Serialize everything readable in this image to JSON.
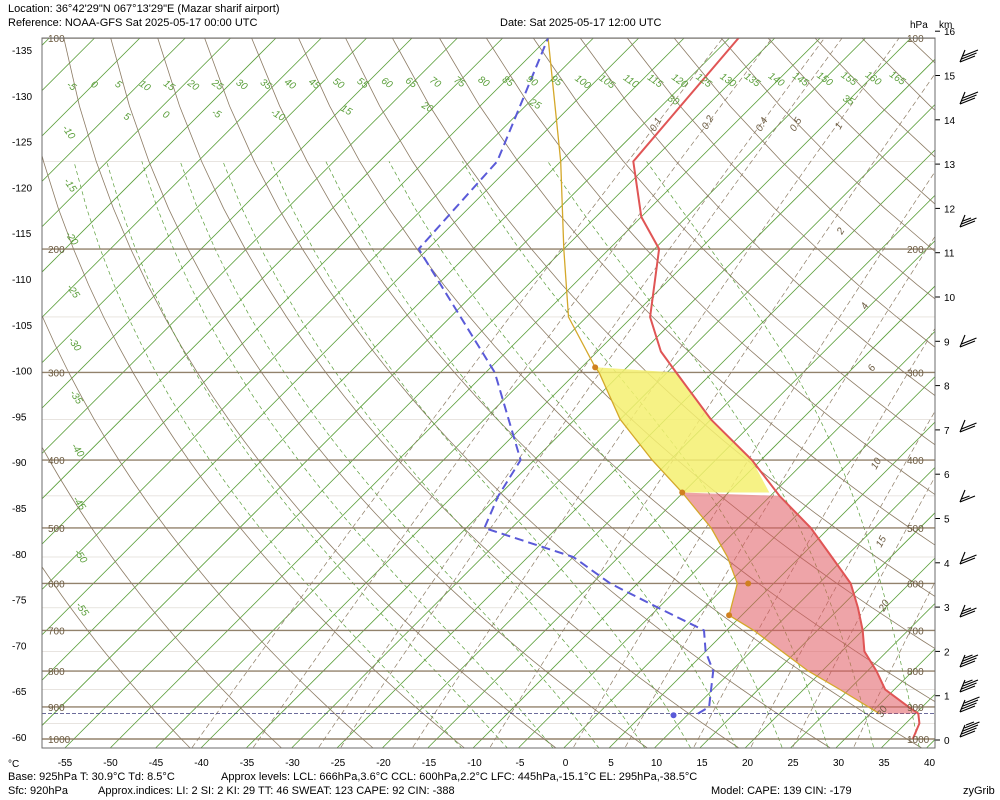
{
  "header": {
    "location": "Location:  36°42'29\"N  067°13'29\"E (Mazar sharif airport)",
    "reference": "Reference: NOAA-GFS Sat 2025-05-17 00:00 UTC",
    "date": "Date: Sat 2025-05-17 12:00 UTC",
    "unit_hpa": "hPa",
    "unit_km": "km",
    "unit_c": "°C"
  },
  "footer": {
    "base": "Base: 925hPa  T: 30.9°C  Td: 8.5°C",
    "levels": "Approx levels:  LCL: 666hPa,3.6°C   CCL: 600hPa,2.2°C   LFC: 445hPa,-15.1°C   EL: 295hPa,-38.5°C",
    "sfc": "Sfc: 920hPa",
    "indices": "Approx.indices:  LI: 2   SI: 2   KI: 29   TT: 46   SWEAT: 123    CAPE: 92  CIN: -388",
    "model": "Model: CAPE: 139 CIN: -179",
    "brand": "zyGrib"
  },
  "chart_data": {
    "type": "line",
    "diagram": "skew-T log-p",
    "x_ticks": [
      "-55",
      "-50",
      "-45",
      "-40",
      "-35",
      "-30",
      "-25",
      "-20",
      "-15",
      "-10",
      "-5",
      "0",
      "5",
      "10",
      "15",
      "20",
      "25",
      "30",
      "35",
      "40"
    ],
    "left_ticks": [
      "-135",
      "-130",
      "-125",
      "-120",
      "-115",
      "-110",
      "-105",
      "-100",
      "-95",
      "-90",
      "-85",
      "-80",
      "-75",
      "-70",
      "-65",
      "-60"
    ],
    "pressure_levels": [
      "100",
      "200",
      "300",
      "400",
      "500",
      "600",
      "700",
      "800",
      "900",
      "1000"
    ],
    "km_ticks": [
      "0",
      "1",
      "2",
      "3",
      "4",
      "5",
      "6",
      "7",
      "8",
      "9",
      "10",
      "11",
      "12",
      "13",
      "14",
      "15",
      "16"
    ],
    "mixing_ratio_labels": [
      "0.1",
      "0.2",
      "0.4",
      "0.5",
      "1",
      "2",
      "4",
      "6",
      "10",
      "15",
      "20",
      "30"
    ],
    "theta_top_labels": [
      "-5",
      "0",
      "5",
      "10",
      "15",
      "20",
      "25",
      "30",
      "35",
      "40",
      "45",
      "50",
      "55",
      "60",
      "65",
      "70",
      "75",
      "80",
      "85",
      "90",
      "95",
      "100",
      "105",
      "110",
      "115",
      "120",
      "125",
      "130",
      "135",
      "140",
      "145",
      "150",
      "155",
      "160",
      "165"
    ],
    "theta_left_labels": [
      "-10",
      "-15",
      "-20",
      "-25",
      "-30",
      "-35",
      "-40",
      "-45",
      "-50",
      "-55"
    ],
    "theta_e_labels": [
      "5",
      "0",
      "-5",
      "-10",
      "15",
      "20",
      "25",
      "30",
      "35"
    ],
    "temperature_profile": [
      [
        1000,
        37.5
      ],
      [
        950,
        36.5
      ],
      [
        920,
        35.3
      ],
      [
        900,
        33.5
      ],
      [
        850,
        29.0
      ],
      [
        800,
        26.0
      ],
      [
        750,
        22.5
      ],
      [
        700,
        20.0
      ],
      [
        650,
        17.0
      ],
      [
        600,
        13.5
      ],
      [
        550,
        8.5
      ],
      [
        500,
        3.0
      ],
      [
        450,
        -4.0
      ],
      [
        400,
        -11.0
      ],
      [
        350,
        -20.0
      ],
      [
        300,
        -29.0
      ],
      [
        280,
        -33.0
      ],
      [
        250,
        -38.0
      ],
      [
        200,
        -44.5
      ],
      [
        180,
        -50.0
      ],
      [
        150,
        -57.0
      ],
      [
        100,
        -59.0
      ]
    ],
    "dewpoint_profile": [
      [
        920,
        11.0
      ],
      [
        900,
        11.5
      ],
      [
        800,
        8.0
      ],
      [
        750,
        5.0
      ],
      [
        700,
        2.5
      ],
      [
        650,
        -5.0
      ],
      [
        600,
        -13.0
      ],
      [
        550,
        -20.0
      ],
      [
        500,
        -33.0
      ],
      [
        450,
        -35.0
      ],
      [
        400,
        -36.5
      ],
      [
        300,
        -49.0
      ],
      [
        200,
        -71.0
      ],
      [
        150,
        -72.0
      ],
      [
        100,
        -80.0
      ]
    ],
    "parcel_profile": [
      [
        920,
        31.0
      ],
      [
        850,
        24.0
      ],
      [
        800,
        18.5
      ],
      [
        700,
        8.0
      ],
      [
        666,
        3.6
      ],
      [
        600,
        1.0
      ],
      [
        550,
        -3.0
      ],
      [
        500,
        -8.0
      ],
      [
        445,
        -15.1
      ],
      [
        400,
        -22.0
      ],
      [
        350,
        -30.0
      ],
      [
        300,
        -37.5
      ],
      [
        295,
        -38.5
      ],
      [
        250,
        -47.0
      ],
      [
        200,
        -55.0
      ],
      [
        150,
        -65.0
      ],
      [
        100,
        -80.0
      ]
    ],
    "markers": {
      "lcl": [
        666,
        3.6
      ],
      "ccl": [
        600,
        2.2
      ],
      "lfc": [
        445,
        -15.1
      ],
      "el": [
        295,
        -38.5
      ],
      "base_td": [
        925,
        8.5
      ]
    },
    "surface_pressure": "920",
    "base_pressure": "925",
    "wind_barbs_kt": [
      30,
      30,
      25,
      20,
      20,
      15,
      20,
      25,
      35,
      35,
      40,
      45
    ]
  },
  "colors": {
    "temperature": "#e05555",
    "dewpoint": "#5a5ad8",
    "parcel": "#d4a82a",
    "cape_fill": "#e05a60",
    "cin_fill": "#f4f070",
    "isobar": "#8c7b64",
    "isotherm": "#5a9e3a",
    "dry_adiabat": "#8c7b64",
    "moist_adiabat": "#5a9e3a",
    "mixing_ratio": "#8c7b64"
  }
}
